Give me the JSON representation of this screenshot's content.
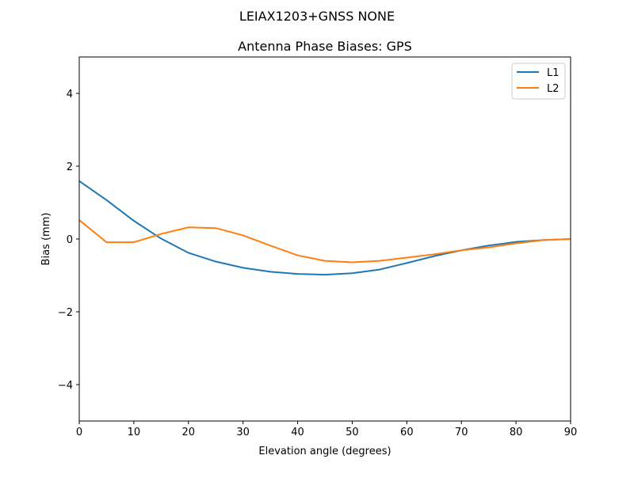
{
  "chart_data": {
    "type": "line",
    "suptitle": "LEIAX1203+GNSS  NONE",
    "title": "Antenna Phase Biases: GPS",
    "xlabel": "Elevation angle (degrees)",
    "ylabel": "Bias (mm)",
    "xlim": [
      0,
      90
    ],
    "ylim": [
      -5,
      5
    ],
    "xticks": [
      0,
      10,
      20,
      30,
      40,
      50,
      60,
      70,
      80,
      90
    ],
    "yticks": [
      -4,
      -2,
      0,
      2,
      4
    ],
    "ytick_labels": [
      "−4",
      "−2",
      "0",
      "2",
      "4"
    ],
    "grid": false,
    "legend_position": "top-right",
    "x": [
      0,
      5,
      10,
      15,
      20,
      25,
      30,
      35,
      40,
      45,
      50,
      55,
      60,
      65,
      70,
      75,
      80,
      85,
      90
    ],
    "series": [
      {
        "name": "L1",
        "color": "#1f77b4",
        "values": [
          1.59,
          1.07,
          0.5,
          0.01,
          -0.38,
          -0.62,
          -0.79,
          -0.9,
          -0.96,
          -0.98,
          -0.94,
          -0.84,
          -0.66,
          -0.47,
          -0.31,
          -0.18,
          -0.08,
          -0.03,
          0.0
        ]
      },
      {
        "name": "L2",
        "color": "#ff7f0e",
        "values": [
          0.52,
          -0.09,
          -0.09,
          0.14,
          0.32,
          0.3,
          0.1,
          -0.18,
          -0.45,
          -0.6,
          -0.64,
          -0.6,
          -0.51,
          -0.42,
          -0.31,
          -0.23,
          -0.12,
          -0.03,
          0.0
        ]
      }
    ]
  }
}
